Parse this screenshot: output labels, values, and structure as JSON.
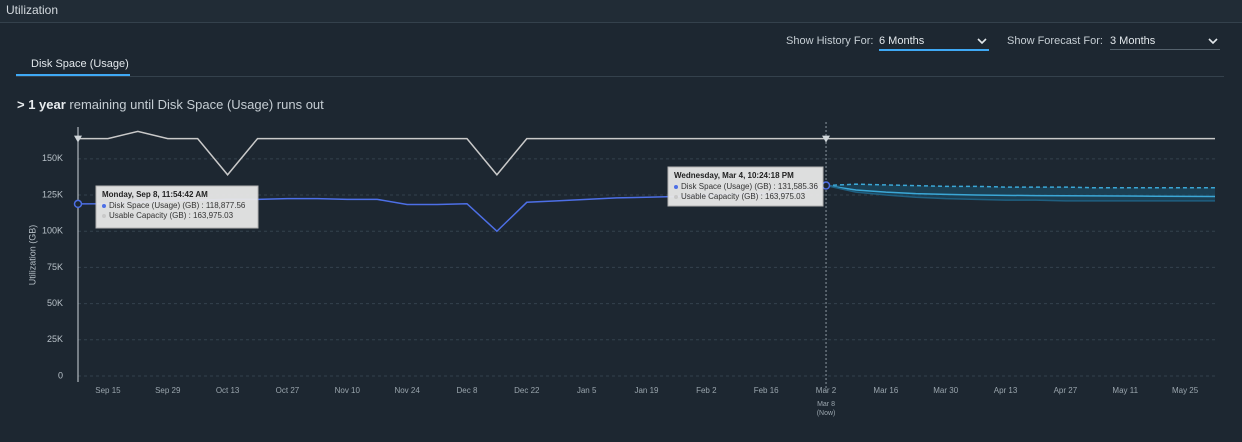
{
  "header": {
    "title": "Utilization"
  },
  "controls": {
    "history_label": "Show History For:",
    "history_value": "6 Months",
    "forecast_label": "Show Forecast For:",
    "forecast_value": "3 Months"
  },
  "tabs": [
    "Disk Space (Usage)"
  ],
  "status": {
    "emphasis": "> 1 year",
    "text": "remaining until Disk Space (Usage) runs out"
  },
  "chart_data": {
    "type": "line",
    "ylabel": "Utilization (GB)",
    "categories": [
      null,
      "Sep 15",
      null,
      "Sep 29",
      null,
      "Oct 13",
      null,
      "Oct 27",
      null,
      "Nov 10",
      null,
      "Nov 24",
      null,
      "Dec 8",
      null,
      "Dec 22",
      null,
      "Jan 5",
      null,
      "Jan 19",
      null,
      "Feb 2",
      null,
      "Feb 16",
      null,
      "Mar 2",
      null,
      "Mar 16",
      null,
      "Mar 30",
      null,
      "Apr 13",
      null,
      "Apr 27",
      null,
      "May 11",
      null,
      "May 25",
      null
    ],
    "series": [
      {
        "color": "#4d6fe6",
        "values": [
          118877.56,
          119000,
          120000,
          121000,
          121500,
          122000,
          122000,
          122500,
          122500,
          122000,
          122000,
          118500,
          118500,
          119000,
          100000,
          120000,
          121000,
          122000,
          123000,
          123500,
          124000,
          125000,
          125500,
          126000,
          127000,
          131585.36,
          null,
          null,
          null,
          null,
          null,
          null,
          null,
          null,
          null,
          null,
          null,
          null,
          null
        ]
      },
      {
        "color": "#c9c9c9",
        "values": [
          163975.03,
          163975.03,
          169000,
          163975.03,
          163975.03,
          139000,
          163975.03,
          163975.03,
          163975.03,
          163975.03,
          163975.03,
          163975.03,
          163975.03,
          163975.03,
          139000,
          163975.03,
          163975.03,
          163975.03,
          163975.03,
          163975.03,
          163975.03,
          163975.03,
          163975.03,
          163975.03,
          163975.03,
          163975.03,
          163975.03,
          163975.03,
          163975.03,
          163975.03,
          163975.03,
          163975.03,
          163975.03,
          163975.03,
          163975.03,
          163975.03,
          163975.03,
          163975.03,
          163975.03
        ]
      },
      {
        "color": "#3ba7d6",
        "values": [
          null,
          null,
          null,
          null,
          null,
          null,
          null,
          null,
          null,
          null,
          null,
          null,
          null,
          null,
          null,
          null,
          null,
          null,
          null,
          null,
          null,
          null,
          null,
          null,
          null,
          131585.36,
          128500,
          127000,
          126000,
          125500,
          125000,
          124800,
          124600,
          124500,
          124400,
          124300,
          124200,
          124100,
          124000
        ]
      },
      {
        "color": "#3ba7d6",
        "dashed": true,
        "role": "band-upper",
        "values": [
          null,
          null,
          null,
          null,
          null,
          null,
          null,
          null,
          null,
          null,
          null,
          null,
          null,
          null,
          null,
          null,
          null,
          null,
          null,
          null,
          null,
          null,
          null,
          null,
          null,
          131585.36,
          132500,
          132000,
          131500,
          131000,
          131000,
          130500,
          130500,
          130500,
          130000,
          130000,
          130000,
          130000,
          130000
        ]
      },
      {
        "color": "#1f5f80",
        "role": "band-lower",
        "values": [
          null,
          null,
          null,
          null,
          null,
          null,
          null,
          null,
          null,
          null,
          null,
          null,
          null,
          null,
          null,
          null,
          null,
          null,
          null,
          null,
          null,
          null,
          null,
          null,
          null,
          131585.36,
          127000,
          125000,
          123500,
          122500,
          122000,
          121500,
          121500,
          121000,
          121000,
          121000,
          121000,
          121000,
          121000
        ]
      }
    ],
    "band_color": "#1b4a63",
    "ylim": [
      0,
      172000
    ],
    "yticks": [
      0,
      {
        "value": 25000,
        "label": "25K"
      },
      {
        "value": 50000,
        "label": "50K"
      },
      {
        "value": 75000,
        "label": "75K"
      },
      {
        "value": 100000,
        "label": "100K"
      },
      {
        "value": 125000,
        "label": "125K"
      },
      {
        "value": 150000,
        "label": "150K"
      }
    ],
    "grid": true,
    "now_label": "Mar 8",
    "now_sublabel": "(Now)",
    "tooltips": [
      {
        "title": "Monday, Sep 8, 11:54:42 AM",
        "rows": [
          "Disk Space (Usage) (GB) : 118,877.56",
          "Usable Capacity (GB) : 163,975.03"
        ]
      },
      {
        "title": "Wednesday, Mar 4, 10:24:18 PM",
        "rows": [
          "Disk Space (Usage) (GB) : 131,585.36",
          "Usable Capacity (GB) : 163,975.03"
        ]
      }
    ]
  }
}
